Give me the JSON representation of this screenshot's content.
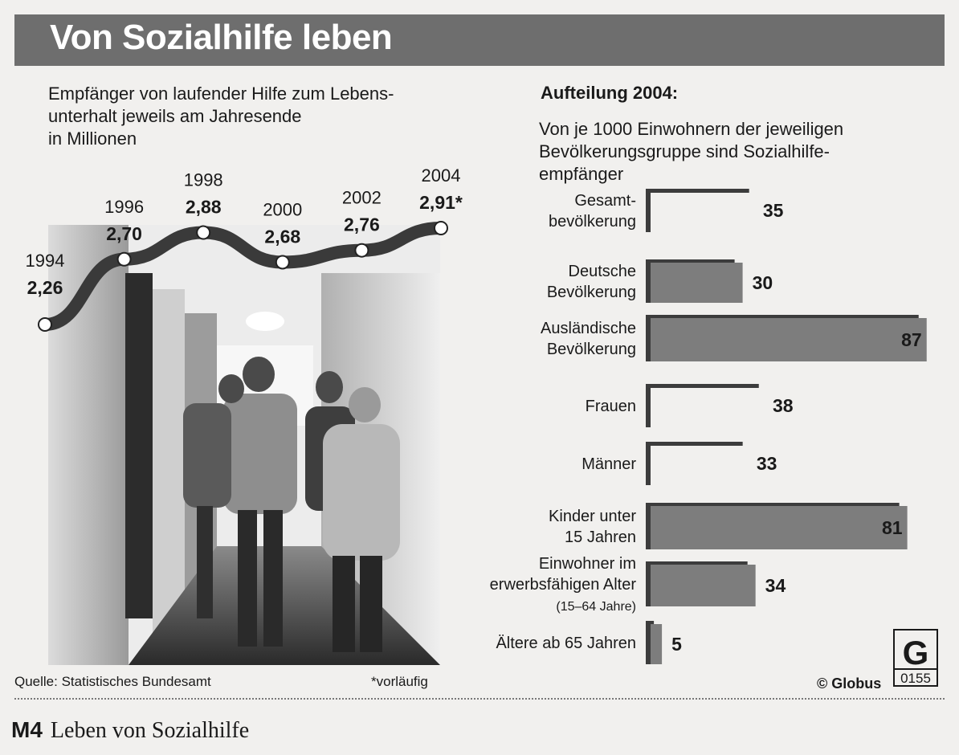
{
  "title": "Von Sozialhilfe leben",
  "left_subtitle": "Empfänger von laufender Hilfe zum Lebens-\nunterhalt jeweils am Jahresende\nin Millionen",
  "right_heading": "Aufteilung 2004:",
  "right_subtitle": "Von je 1000 Einwohnern der jeweiligen\nBevölkerungsgruppe sind Sozialhilfe-\nempfänger",
  "source": "Quelle: Statistisches Bundesamt",
  "footnote": "*vorläufig",
  "credit": "© Globus",
  "logo": {
    "letter": "G",
    "number": "0155"
  },
  "caption": {
    "label": "M4",
    "text": "Leben von Sozialhilfe"
  },
  "colors": {
    "band": "#6e6e6e",
    "line": "#3a3a3a",
    "bar": "#7d7d7d",
    "bar_dark": "#3c3c3c"
  },
  "chart_data": [
    {
      "type": "line",
      "x": [
        "1994",
        "1996",
        "1998",
        "2000",
        "2002",
        "2004"
      ],
      "values": [
        2.26,
        2.7,
        2.88,
        2.68,
        2.76,
        2.91
      ],
      "point_labels": [
        "2,26",
        "2,70",
        "2,88",
        "2,68",
        "2,76",
        "2,91*"
      ],
      "ylabel": "in Millionen"
    },
    {
      "type": "bar",
      "orientation": "horizontal",
      "categories": [
        {
          "label": "Gesamt-\nbevölkerung",
          "value": 35,
          "group": "total"
        },
        {
          "label": "Deutsche\nBevölkerung",
          "value": 30,
          "group": "nationality"
        },
        {
          "label": "Ausländische\nBevölkerung",
          "value": 87,
          "group": "nationality"
        },
        {
          "label": "Frauen",
          "value": 38,
          "group": "gender"
        },
        {
          "label": "Männer",
          "value": 33,
          "group": "gender"
        },
        {
          "label": "Kinder unter\n15 Jahren",
          "value": 81,
          "group": "age"
        },
        {
          "label": "Einwohner im\nerwerbsfähigen Alter\n(15–64 Jahre)",
          "value": 34,
          "group": "age"
        },
        {
          "label": "Ältere ab 65 Jahren",
          "value": 5,
          "group": "age"
        }
      ],
      "style": [
        "outline",
        "filled",
        "filled",
        "outline",
        "outline",
        "filled",
        "filled",
        "filled"
      ]
    }
  ]
}
